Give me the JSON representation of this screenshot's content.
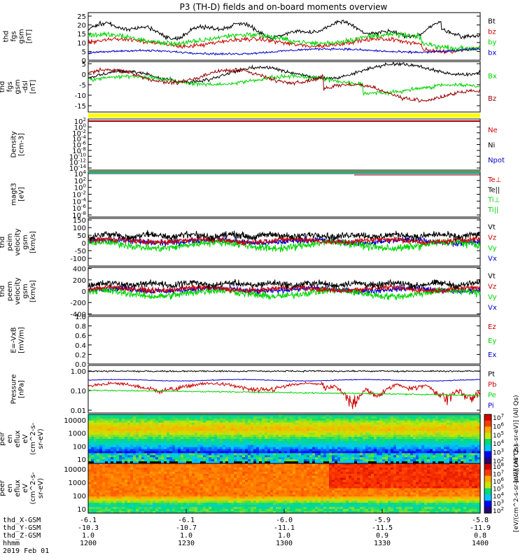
{
  "title": "P3 (TH-D) fields and on-board moments overview",
  "colors": {
    "black": "#000000",
    "red": "#cc0000",
    "darkred": "#990000",
    "green": "#00d400",
    "blue": "#0000cc",
    "yellow": "#ffff00"
  },
  "panels": [
    {
      "id": "fgs-btotal",
      "ylabel": [
        "thd",
        "fgs",
        "gsm",
        "[nT]"
      ],
      "yrange": [
        0,
        27
      ],
      "ticks": [
        "25",
        "20",
        "15",
        "10",
        "5",
        "0"
      ],
      "legend": [
        [
          "Bt",
          "black"
        ],
        [
          "bz",
          "red"
        ],
        [
          "by",
          "green"
        ],
        [
          "bx",
          "blue"
        ]
      ]
    },
    {
      "id": "fgs-components",
      "ylabel": [
        "thd",
        "fgs",
        "gsm",
        "-dsl",
        "[nT]"
      ],
      "yrange": [
        -18,
        6
      ],
      "ticks": [
        "5",
        "0",
        "-5",
        "-10",
        "-15"
      ],
      "legend": [
        [
          "Bx",
          "green"
        ],
        [
          "Bz",
          "darkred"
        ]
      ]
    },
    {
      "id": "density",
      "ylabel": [
        "Density",
        "[cm-3]"
      ],
      "ticks": [
        "10^2",
        "10^0",
        "10^-2",
        "10^-4",
        "10^-6",
        "10^-8",
        "10^-10",
        "10^-12",
        "10^-14"
      ],
      "legend": [
        [
          "Ne",
          "red"
        ],
        [
          "Ni",
          "black"
        ],
        [
          "Npot",
          "blue"
        ]
      ]
    },
    {
      "id": "temperature",
      "ylabel": [
        "magt3",
        "[eV]"
      ],
      "ticks": [
        "10^4",
        "10^2",
        "10^0",
        "10^-2",
        "10^-4",
        "10^-6",
        "10^-8"
      ],
      "legend": [
        [
          "Te⊥",
          "red"
        ],
        [
          "Te||",
          "black"
        ],
        [
          "Ti⊥",
          "green"
        ],
        [
          "Ti||",
          "green"
        ]
      ]
    },
    {
      "id": "peim-velocity",
      "ylabel": [
        "thd",
        "peim",
        "velocity",
        "gsm",
        "[km/s]"
      ],
      "yrange": [
        -150,
        160
      ],
      "ticks": [
        "150",
        "100",
        "50",
        "0",
        "-50",
        "-100"
      ],
      "legend": [
        [
          "Vt",
          "black"
        ],
        [
          "Vz",
          "red"
        ],
        [
          "Vy",
          "green"
        ],
        [
          "Vx",
          "blue"
        ]
      ]
    },
    {
      "id": "peem-velocity",
      "ylabel": [
        "thd",
        "peem",
        "velocity",
        "gsm",
        "[km/s]"
      ],
      "yrange": [
        -420,
        420
      ],
      "ticks": [
        "400",
        "200",
        "0",
        "-200",
        "-400"
      ],
      "legend": [
        [
          "Vt",
          "black"
        ],
        [
          "Vz",
          "red"
        ],
        [
          "Vy",
          "green"
        ],
        [
          "Vx",
          "blue"
        ]
      ]
    },
    {
      "id": "efield",
      "ylabel": [
        "E=-VxB",
        "[mV/m]"
      ],
      "yrange": [
        0,
        1
      ],
      "ticks": [
        "1.0",
        "0.8",
        "0.6",
        "0.4",
        "0.2",
        "0.0"
      ],
      "legend": [
        [
          "Ez",
          "red"
        ],
        [
          "Ey",
          "green"
        ],
        [
          "Ex",
          "blue"
        ]
      ]
    },
    {
      "id": "pressure",
      "ylabel": [
        "Pressure",
        "[nPa]"
      ],
      "ticks": [
        "1.00",
        "0.10",
        "0.01"
      ],
      "legend": [
        [
          "Pt",
          "black"
        ],
        [
          "Pb",
          "red"
        ],
        [
          "Pe",
          "green"
        ],
        [
          "Pi",
          "blue"
        ]
      ]
    },
    {
      "id": "peir-spectrogram",
      "ylabel": [
        "thd",
        "peir",
        "en",
        "eflux",
        "eV",
        "(cm^2-s-",
        "sr-eV)"
      ],
      "ticks": [
        "10000",
        "1000",
        "100",
        "10"
      ]
    },
    {
      "id": "peer-spectrogram",
      "ylabel": [
        "thd",
        "peer",
        "en",
        "eflux",
        "eV",
        "(cm^2-s-",
        "sr-eV)"
      ],
      "ticks": [
        "10000",
        "1000",
        "100",
        "10"
      ]
    }
  ],
  "colorbar": {
    "label": "[eV/(cm^2-s-sr-eV)] (All Qs)",
    "ticks": [
      "10^7",
      "10^6",
      "10^5",
      "10^4",
      "10^3",
      "10^2"
    ]
  },
  "colorbar2": {
    "label": "[eV/(cm^2-s-sr-eV)] (All Qs)",
    "ticks": [
      "10^8",
      "10^7",
      "10^6",
      "10^5",
      "10^4",
      "10^3",
      "10^2"
    ]
  },
  "x_axis": {
    "row_labels": [
      "thd_X-GSM",
      "thd_Y-GSM",
      "thd_Z-GSM",
      "hhmm",
      "2019 Feb 01"
    ],
    "columns": [
      [
        "-6.1",
        "-10.3",
        "1.0",
        "1200"
      ],
      [
        "-6.1",
        "-10.7",
        "1.0",
        "1230"
      ],
      [
        "-6.0",
        "-11.1",
        "1.0",
        "1300"
      ],
      [
        "-5.9",
        "-11.5",
        "0.9",
        "1330"
      ],
      [
        "-5.8",
        "-11.9",
        "0.8",
        "1400"
      ]
    ]
  }
}
